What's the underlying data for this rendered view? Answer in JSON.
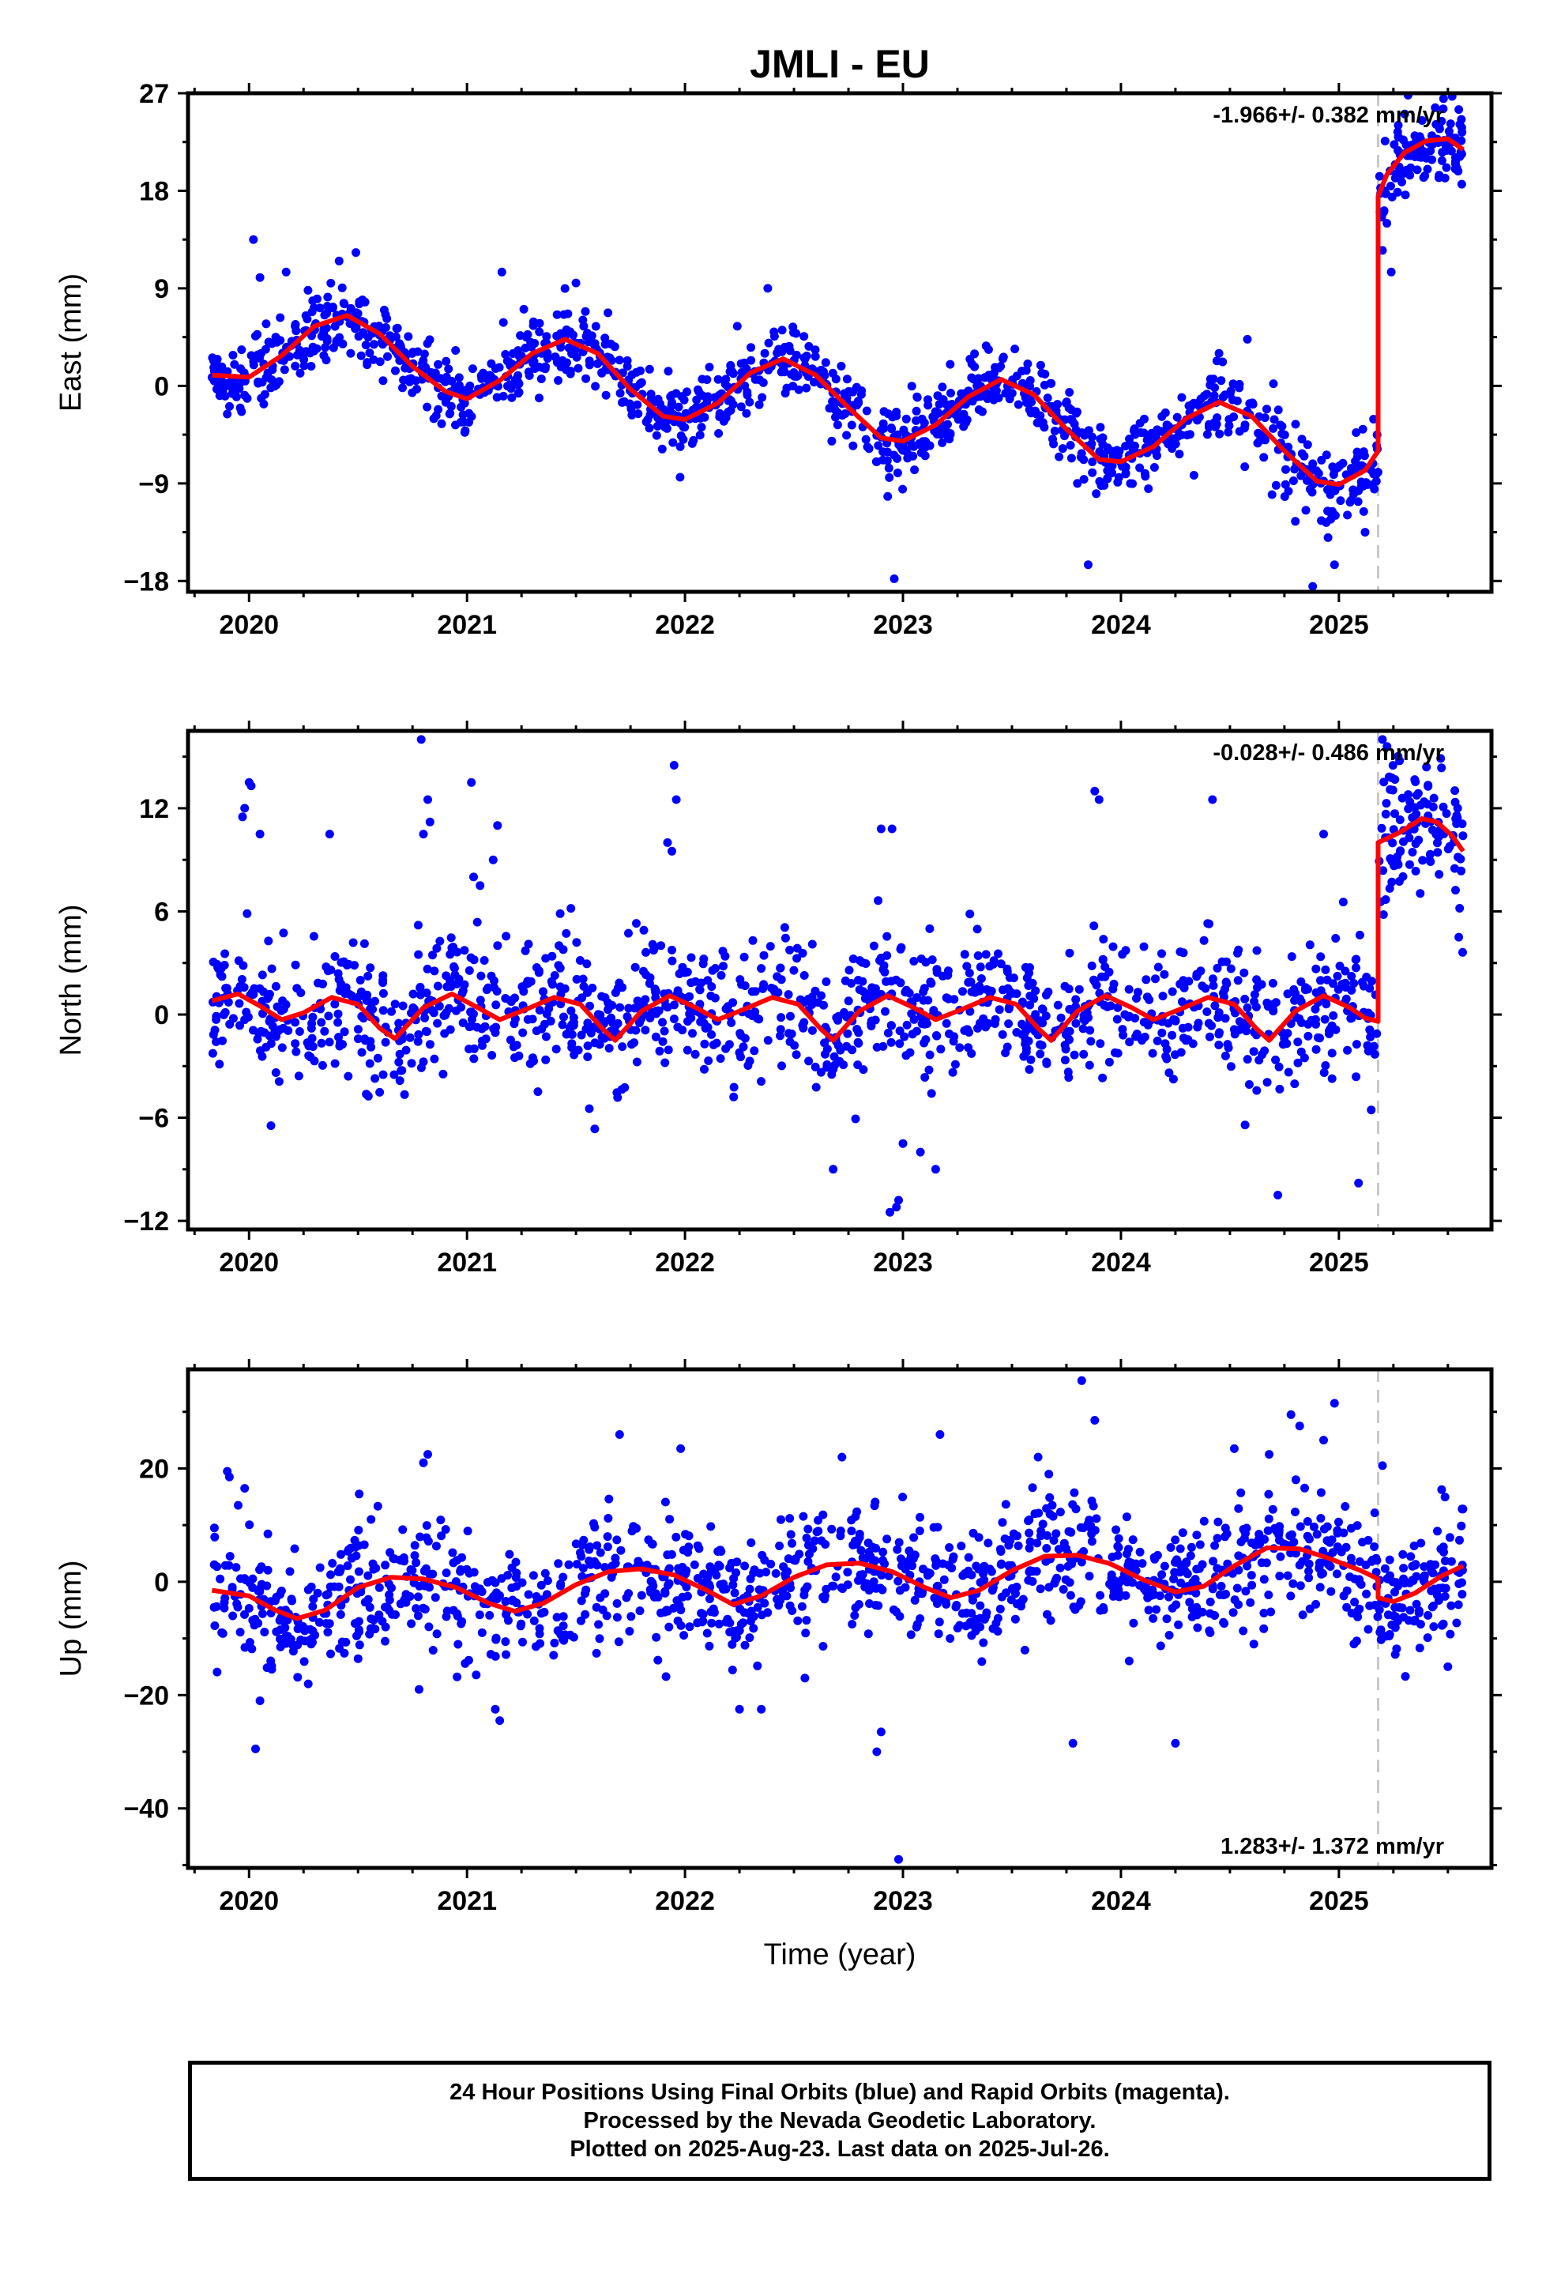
{
  "title": "JMLI - EU",
  "footer": {
    "line1": "24 Hour Positions Using Final Orbits (blue) and Rapid Orbits (magenta).",
    "line2": "Processed by the Nevada Geodetic Laboratory.",
    "line3": "Plotted on 2025-Aug-23. Last data on 2025-Jul-26."
  },
  "colors": {
    "points": "#0000ff",
    "model": "#ff0000",
    "step_line": "#c8c8c8",
    "frame": "#000000"
  },
  "chart_data": [
    {
      "type": "scatter",
      "component": "east",
      "ylabel": "East (mm)",
      "xlim": [
        2019.72,
        2025.7
      ],
      "ylim": [
        -19.0,
        27.0
      ],
      "yticks": [
        -18,
        -9,
        0,
        9,
        18,
        27
      ],
      "xticks": [
        2020,
        2021,
        2022,
        2023,
        2024,
        2025
      ],
      "rate_text": "-1.966+/- 0.382 mm/yr",
      "rate_position": "top-right",
      "step_epoch": 2025.18,
      "model": [
        [
          2019.83,
          1.0
        ],
        [
          2020.0,
          0.8
        ],
        [
          2020.15,
          2.8
        ],
        [
          2020.3,
          5.5
        ],
        [
          2020.45,
          6.5
        ],
        [
          2020.6,
          4.8
        ],
        [
          2020.75,
          1.8
        ],
        [
          2020.9,
          -0.5
        ],
        [
          2021.0,
          -1.2
        ],
        [
          2021.15,
          0.5
        ],
        [
          2021.3,
          3.0
        ],
        [
          2021.45,
          4.3
        ],
        [
          2021.6,
          3.0
        ],
        [
          2021.75,
          -0.3
        ],
        [
          2021.9,
          -2.8
        ],
        [
          2022.0,
          -3.1
        ],
        [
          2022.15,
          -1.6
        ],
        [
          2022.3,
          1.2
        ],
        [
          2022.45,
          2.5
        ],
        [
          2022.6,
          1.0
        ],
        [
          2022.75,
          -2.0
        ],
        [
          2022.9,
          -4.8
        ],
        [
          2023.0,
          -5.1
        ],
        [
          2023.15,
          -3.6
        ],
        [
          2023.3,
          -1.0
        ],
        [
          2023.45,
          0.6
        ],
        [
          2023.6,
          -0.8
        ],
        [
          2023.75,
          -4.0
        ],
        [
          2023.9,
          -6.8
        ],
        [
          2024.0,
          -7.0
        ],
        [
          2024.15,
          -5.6
        ],
        [
          2024.3,
          -3.0
        ],
        [
          2024.45,
          -1.5
        ],
        [
          2024.6,
          -2.8
        ],
        [
          2024.75,
          -6.0
        ],
        [
          2024.9,
          -8.8
        ],
        [
          2025.0,
          -9.1
        ],
        [
          2025.12,
          -7.8
        ],
        [
          2025.18,
          -6.0
        ],
        [
          2025.18,
          17.5
        ],
        [
          2025.22,
          19.5
        ],
        [
          2025.3,
          21.5
        ],
        [
          2025.4,
          22.6
        ],
        [
          2025.5,
          22.8
        ],
        [
          2025.57,
          21.8
        ]
      ],
      "outliers": [
        [
          2020.02,
          13.5
        ],
        [
          2020.05,
          10.0
        ],
        [
          2020.17,
          10.5
        ],
        [
          2020.49,
          12.3
        ],
        [
          2021.16,
          10.5
        ],
        [
          2021.5,
          9.5
        ],
        [
          2022.24,
          5.5
        ],
        [
          2022.38,
          9.0
        ],
        [
          2022.88,
          -7.0
        ],
        [
          2022.93,
          -10.2
        ],
        [
          2022.96,
          -17.8
        ],
        [
          2023.8,
          -9.0
        ],
        [
          2023.85,
          -16.5
        ],
        [
          2024.45,
          3.0
        ],
        [
          2024.58,
          4.3
        ],
        [
          2024.8,
          -12.5
        ],
        [
          2024.98,
          -16.5
        ],
        [
          2024.95,
          -14.0
        ],
        [
          2025.12,
          -13.5
        ],
        [
          2025.11,
          -4.0
        ],
        [
          2025.2,
          12.5
        ],
        [
          2025.22,
          15.0
        ],
        [
          2025.24,
          10.5
        ],
        [
          2025.48,
          26.5
        ],
        [
          2025.55,
          25.5
        ],
        [
          2024.88,
          -18.5
        ]
      ],
      "noise": {
        "sigma_base": 1.6,
        "sigma_late": 1.9,
        "count": 1250,
        "post_count": 110,
        "start": 2019.83,
        "end": 2025.57
      }
    },
    {
      "type": "scatter",
      "component": "north",
      "ylabel": "North (mm)",
      "xlim": [
        2019.72,
        2025.7
      ],
      "ylim": [
        -12.5,
        16.5
      ],
      "yticks": [
        -12,
        -6,
        0,
        6,
        12
      ],
      "xticks": [
        2020,
        2021,
        2022,
        2023,
        2024,
        2025
      ],
      "rate_text": "-0.028+/- 0.486 mm/yr",
      "rate_position": "top-right",
      "step_epoch": 2025.18,
      "model": [
        [
          2019.83,
          0.8
        ],
        [
          2019.95,
          1.2
        ],
        [
          2020.05,
          0.5
        ],
        [
          2020.15,
          -0.3
        ],
        [
          2020.25,
          0.1
        ],
        [
          2020.38,
          1.0
        ],
        [
          2020.5,
          0.6
        ],
        [
          2020.6,
          -0.8
        ],
        [
          2020.67,
          -1.4
        ],
        [
          2020.8,
          0.4
        ],
        [
          2020.93,
          1.2
        ],
        [
          2021.05,
          0.4
        ],
        [
          2021.15,
          -0.3
        ],
        [
          2021.27,
          0.3
        ],
        [
          2021.4,
          1.0
        ],
        [
          2021.52,
          0.6
        ],
        [
          2021.62,
          -0.8
        ],
        [
          2021.68,
          -1.5
        ],
        [
          2021.8,
          0.2
        ],
        [
          2021.93,
          1.1
        ],
        [
          2022.05,
          0.4
        ],
        [
          2022.15,
          -0.3
        ],
        [
          2022.27,
          0.3
        ],
        [
          2022.4,
          1.0
        ],
        [
          2022.52,
          0.6
        ],
        [
          2022.62,
          -0.8
        ],
        [
          2022.68,
          -1.5
        ],
        [
          2022.8,
          0.2
        ],
        [
          2022.93,
          1.1
        ],
        [
          2023.05,
          0.4
        ],
        [
          2023.15,
          -0.3
        ],
        [
          2023.27,
          0.3
        ],
        [
          2023.4,
          1.0
        ],
        [
          2023.52,
          0.6
        ],
        [
          2023.62,
          -0.8
        ],
        [
          2023.68,
          -1.5
        ],
        [
          2023.8,
          0.2
        ],
        [
          2023.93,
          1.1
        ],
        [
          2024.05,
          0.4
        ],
        [
          2024.15,
          -0.3
        ],
        [
          2024.27,
          0.3
        ],
        [
          2024.4,
          1.0
        ],
        [
          2024.52,
          0.6
        ],
        [
          2024.62,
          -0.8
        ],
        [
          2024.68,
          -1.5
        ],
        [
          2024.8,
          0.2
        ],
        [
          2024.93,
          1.1
        ],
        [
          2025.05,
          0.4
        ],
        [
          2025.12,
          -0.2
        ],
        [
          2025.18,
          -0.4
        ],
        [
          2025.18,
          10.0
        ],
        [
          2025.28,
          10.6
        ],
        [
          2025.38,
          11.4
        ],
        [
          2025.45,
          11.2
        ],
        [
          2025.52,
          10.4
        ],
        [
          2025.57,
          9.5
        ]
      ],
      "outliers": [
        [
          2019.97,
          11.5
        ],
        [
          2019.98,
          12.0
        ],
        [
          2020.0,
          13.5
        ],
        [
          2020.01,
          13.3
        ],
        [
          2020.05,
          10.5
        ],
        [
          2020.37,
          10.5
        ],
        [
          2020.79,
          16.0
        ],
        [
          2020.82,
          12.5
        ],
        [
          2020.83,
          11.2
        ],
        [
          2020.8,
          10.5
        ],
        [
          2021.02,
          13.5
        ],
        [
          2021.03,
          8.0
        ],
        [
          2021.06,
          7.5
        ],
        [
          2021.12,
          9.0
        ],
        [
          2021.14,
          11.0
        ],
        [
          2021.92,
          10.0
        ],
        [
          2021.95,
          14.5
        ],
        [
          2021.96,
          12.5
        ],
        [
          2021.94,
          9.5
        ],
        [
          2022.68,
          -9.0
        ],
        [
          2022.9,
          10.8
        ],
        [
          2022.95,
          10.8
        ],
        [
          2022.94,
          -11.5
        ],
        [
          2022.97,
          -11.2
        ],
        [
          2022.98,
          -10.8
        ],
        [
          2023.0,
          -7.5
        ],
        [
          2023.08,
          -8.0
        ],
        [
          2023.15,
          -9.0
        ],
        [
          2023.88,
          13.0
        ],
        [
          2023.9,
          12.5
        ],
        [
          2024.42,
          12.5
        ],
        [
          2024.72,
          -10.5
        ],
        [
          2024.93,
          10.5
        ],
        [
          2025.09,
          -9.8
        ],
        [
          2025.2,
          16.0
        ],
        [
          2025.55,
          4.5
        ]
      ],
      "noise": {
        "sigma_base": 2.0,
        "sigma_late": 2.2,
        "count": 1250,
        "post_count": 110,
        "start": 2019.83,
        "end": 2025.57
      }
    },
    {
      "type": "scatter",
      "component": "up",
      "ylabel": "Up (mm)",
      "xlabel": "Time (year)",
      "xlim": [
        2019.72,
        2025.7
      ],
      "ylim": [
        -50.5,
        37.5
      ],
      "yticks": [
        -40,
        -20,
        0,
        20
      ],
      "xticks": [
        2020,
        2021,
        2022,
        2023,
        2024,
        2025
      ],
      "rate_text": "1.283+/- 1.372 mm/yr",
      "rate_position": "bottom-right",
      "step_epoch": 2025.18,
      "model": [
        [
          2019.83,
          -1.5
        ],
        [
          2020.0,
          -2.5
        ],
        [
          2020.12,
          -5.0
        ],
        [
          2020.22,
          -6.5
        ],
        [
          2020.35,
          -5.0
        ],
        [
          2020.5,
          -1.0
        ],
        [
          2020.65,
          0.8
        ],
        [
          2020.8,
          0.5
        ],
        [
          2020.95,
          -1.0
        ],
        [
          2021.1,
          -3.8
        ],
        [
          2021.22,
          -5.2
        ],
        [
          2021.35,
          -3.8
        ],
        [
          2021.5,
          -0.5
        ],
        [
          2021.65,
          1.8
        ],
        [
          2021.8,
          2.3
        ],
        [
          2021.95,
          1.2
        ],
        [
          2022.1,
          -1.5
        ],
        [
          2022.22,
          -4.0
        ],
        [
          2022.35,
          -2.5
        ],
        [
          2022.5,
          0.8
        ],
        [
          2022.65,
          3.0
        ],
        [
          2022.8,
          3.3
        ],
        [
          2022.95,
          1.8
        ],
        [
          2023.1,
          -1.0
        ],
        [
          2023.22,
          -2.8
        ],
        [
          2023.35,
          -1.5
        ],
        [
          2023.5,
          2.0
        ],
        [
          2023.65,
          4.5
        ],
        [
          2023.8,
          4.7
        ],
        [
          2023.95,
          3.2
        ],
        [
          2024.1,
          0.4
        ],
        [
          2024.25,
          -1.8
        ],
        [
          2024.38,
          -0.8
        ],
        [
          2024.52,
          2.8
        ],
        [
          2024.67,
          6.0
        ],
        [
          2024.82,
          5.8
        ],
        [
          2024.95,
          4.2
        ],
        [
          2025.1,
          2.0
        ],
        [
          2025.18,
          0.5
        ],
        [
          2025.18,
          -2.8
        ],
        [
          2025.25,
          -3.5
        ],
        [
          2025.35,
          -2.0
        ],
        [
          2025.47,
          1.0
        ],
        [
          2025.57,
          2.8
        ]
      ],
      "outliers": [
        [
          2019.9,
          19.5
        ],
        [
          2019.91,
          18.5
        ],
        [
          2019.95,
          13.5
        ],
        [
          2019.98,
          16.5
        ],
        [
          2020.03,
          -29.5
        ],
        [
          2020.05,
          -21.0
        ],
        [
          2020.82,
          22.5
        ],
        [
          2020.8,
          21.0
        ],
        [
          2021.13,
          -22.5
        ],
        [
          2021.15,
          -24.5
        ],
        [
          2021.7,
          26.0
        ],
        [
          2021.98,
          23.5
        ],
        [
          2022.25,
          -22.5
        ],
        [
          2022.35,
          -22.5
        ],
        [
          2022.72,
          22.0
        ],
        [
          2022.88,
          -30.0
        ],
        [
          2022.9,
          -26.5
        ],
        [
          2022.98,
          -49.0
        ],
        [
          2023.17,
          26.0
        ],
        [
          2023.62,
          22.0
        ],
        [
          2023.78,
          -28.5
        ],
        [
          2023.82,
          35.5
        ],
        [
          2023.88,
          28.5
        ],
        [
          2024.25,
          -28.5
        ],
        [
          2024.52,
          23.5
        ],
        [
          2024.68,
          22.5
        ],
        [
          2024.78,
          29.5
        ],
        [
          2024.82,
          27.5
        ],
        [
          2024.98,
          31.5
        ],
        [
          2024.93,
          25.0
        ],
        [
          2025.2,
          20.5
        ],
        [
          2025.5,
          -15.0
        ],
        [
          2020.78,
          -19.0
        ],
        [
          2022.55,
          -17.0
        ]
      ],
      "noise": {
        "sigma_base": 5.5,
        "sigma_late": 5.5,
        "count": 1250,
        "post_count": 110,
        "start": 2019.83,
        "end": 2025.57
      }
    }
  ]
}
